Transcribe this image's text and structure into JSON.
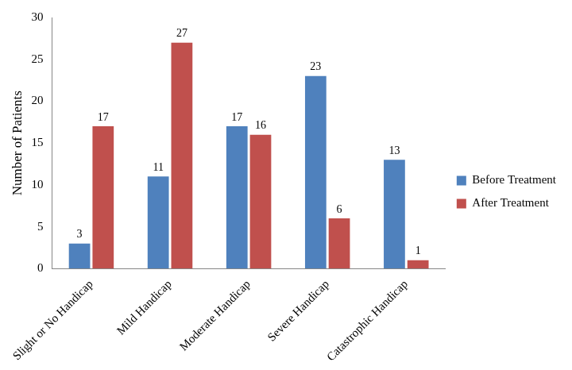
{
  "chart_data": {
    "type": "bar",
    "categories": [
      "Slight or No Handicap",
      "Mild Handicap",
      "Moderate Handicap",
      "Severe Handicap",
      "Catastrophic Handicap"
    ],
    "series": [
      {
        "name": "Before Treatment",
        "color": "#4f81bd",
        "values": [
          3,
          11,
          17,
          23,
          13
        ]
      },
      {
        "name": "After Treatment",
        "color": "#c0504d",
        "values": [
          17,
          27,
          16,
          6,
          1
        ]
      }
    ],
    "y_label": "Number of Patients",
    "ylim": [
      0,
      30
    ],
    "yticks": [
      0,
      5,
      10,
      15,
      20,
      25,
      30
    ],
    "grid": false,
    "legend": "right",
    "data_labels": true
  }
}
